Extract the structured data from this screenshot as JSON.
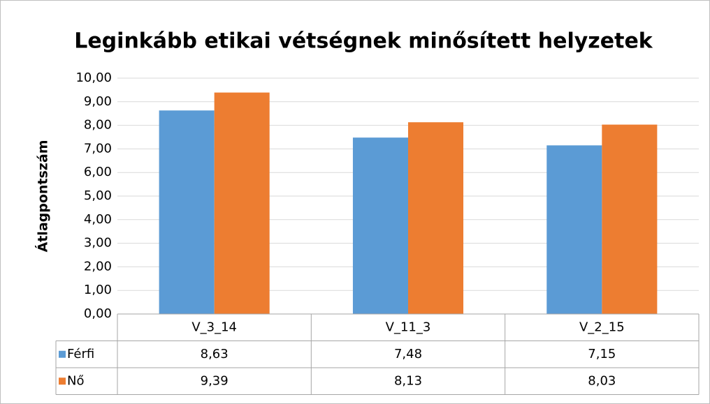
{
  "chart_data": {
    "type": "bar",
    "title": "Leginkább etikai vétségnek minősített helyzetek",
    "y_label": "Átlagpontszám",
    "categories": [
      "V_3_14",
      "V_11_3",
      "V_2_15"
    ],
    "series": [
      {
        "name": "Férfi",
        "color": "#5b9bd5",
        "values": [
          8.63,
          7.48,
          7.15
        ],
        "value_labels": [
          "8,63",
          "7,48",
          "7,15"
        ]
      },
      {
        "name": "Nő",
        "color": "#ed7d31",
        "values": [
          9.39,
          8.13,
          8.03
        ],
        "value_labels": [
          "9,39",
          "8,13",
          "8,03"
        ]
      }
    ],
    "ylim": [
      0,
      10
    ],
    "yticks": [
      {
        "value": 0,
        "label": "0,00"
      },
      {
        "value": 1,
        "label": "1,00"
      },
      {
        "value": 2,
        "label": "2,00"
      },
      {
        "value": 3,
        "label": "3,00"
      },
      {
        "value": 4,
        "label": "4,00"
      },
      {
        "value": 5,
        "label": "5,00"
      },
      {
        "value": 6,
        "label": "6,00"
      },
      {
        "value": 7,
        "label": "7,00"
      },
      {
        "value": 8,
        "label": "8,00"
      },
      {
        "value": 9,
        "label": "9,00"
      },
      {
        "value": 10,
        "label": "10,00"
      }
    ],
    "grid": true,
    "data_table": true
  }
}
